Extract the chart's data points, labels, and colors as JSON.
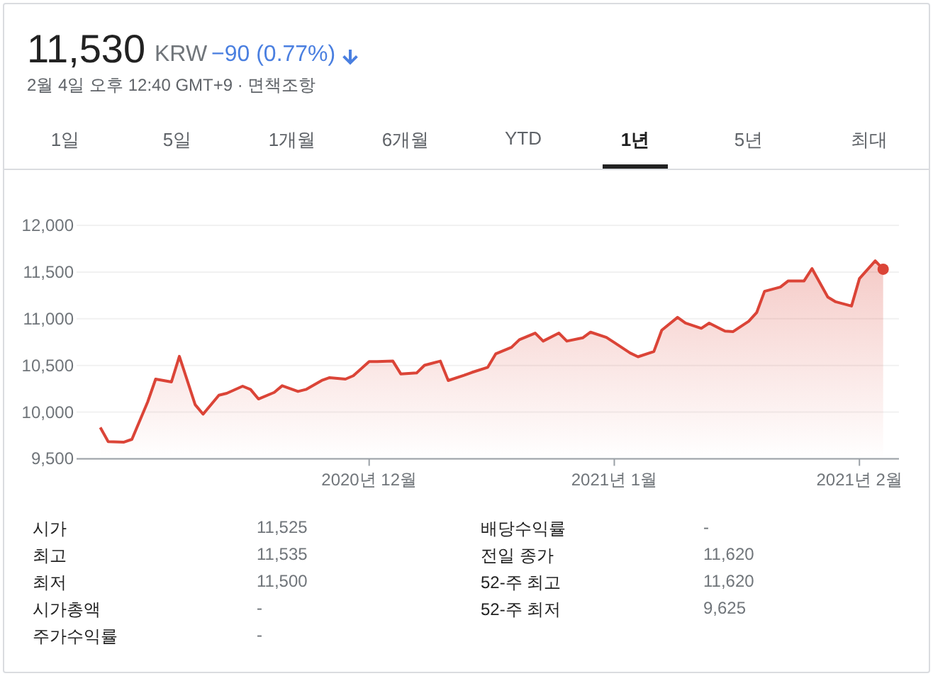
{
  "chart_data": {
    "type": "area",
    "title": "11,530",
    "annotations": [
      "KRW",
      "−90 (0.77%)",
      "2월 4일 오후 12:40 GMT+9 · 면책조항",
      "1일",
      "5일",
      "1개월",
      "6개월",
      "YTD",
      "1년",
      "5년",
      "최대",
      "시가",
      "11,525",
      "최고",
      "11,535",
      "최저",
      "11,500",
      "시가총액",
      "-",
      "주가수익률",
      "-",
      "배당수익률",
      "-",
      "전일 종가",
      "11,620",
      "52-주 최고",
      "11,620",
      "52-주 최저",
      "9,625"
    ],
    "x": [
      "2020-10-28",
      "2020-10-29",
      "2020-10-31",
      "2020-11-01",
      "2020-11-03",
      "2020-11-04",
      "2020-11-06",
      "2020-11-07",
      "2020-11-09",
      "2020-11-10",
      "2020-11-12",
      "2020-11-13",
      "2020-11-15",
      "2020-11-16",
      "2020-11-17",
      "2020-11-19",
      "2020-11-20",
      "2020-11-22",
      "2020-11-23",
      "2020-11-25",
      "2020-11-26",
      "2020-11-28",
      "2020-11-29",
      "2020-12-01",
      "2020-12-02",
      "2020-12-04",
      "2020-12-05",
      "2020-12-07",
      "2020-12-08",
      "2020-12-10",
      "2020-12-11",
      "2020-12-13",
      "2020-12-14",
      "2020-12-16",
      "2020-12-17",
      "2020-12-19",
      "2020-12-20",
      "2020-12-22",
      "2020-12-23",
      "2020-12-25",
      "2020-12-26",
      "2020-12-28",
      "2020-12-29",
      "2020-12-31",
      "2021-01-01",
      "2021-01-03",
      "2021-01-04",
      "2021-01-06",
      "2021-01-07",
      "2021-01-09",
      "2021-01-10",
      "2021-01-12",
      "2021-01-13",
      "2021-01-15",
      "2021-01-16",
      "2021-01-18",
      "2021-01-19",
      "2021-01-20",
      "2021-01-22",
      "2021-01-23",
      "2021-01-25",
      "2021-01-26",
      "2021-01-28",
      "2021-01-29",
      "2021-01-31",
      "2021-02-01",
      "2021-02-03",
      "2021-02-04"
    ],
    "series": [
      {
        "color": "#db4437",
        "values": [
          9835,
          9683,
          9678,
          9708,
          10110,
          10353,
          10323,
          10597,
          10079,
          9978,
          10181,
          10201,
          10277,
          10242,
          10140,
          10211,
          10282,
          10221,
          10242,
          10338,
          10369,
          10353,
          10389,
          10541,
          10541,
          10546,
          10409,
          10419,
          10501,
          10546,
          10338,
          10394,
          10425,
          10480,
          10623,
          10694,
          10775,
          10846,
          10760,
          10846,
          10760,
          10795,
          10856,
          10800,
          10745,
          10633,
          10592,
          10648,
          10877,
          11014,
          10953,
          10897,
          10953,
          10867,
          10861,
          10973,
          11065,
          11293,
          11339,
          11405,
          11405,
          11537,
          11232,
          11181,
          11136,
          11430,
          11620,
          11530
        ]
      }
    ],
    "xlim": [
      "2020-10-25",
      "2021-02-06"
    ],
    "xticks": [
      {
        "value": "2020-12-01",
        "label": "2020년 12월"
      },
      {
        "value": "2021-01-01",
        "label": "2021년 1월"
      },
      {
        "value": "2021-02-01",
        "label": "2021년 2월"
      }
    ],
    "ylim": [
      9500,
      12000
    ],
    "yticks": [
      {
        "value": 9500,
        "label": "9,500"
      },
      {
        "value": 10000,
        "label": "10,000"
      },
      {
        "value": 10500,
        "label": "10,500"
      },
      {
        "value": 11000,
        "label": "11,000"
      },
      {
        "value": 11500,
        "label": "11,500"
      },
      {
        "value": 12000,
        "label": "12,000"
      }
    ],
    "grid": "y"
  }
}
